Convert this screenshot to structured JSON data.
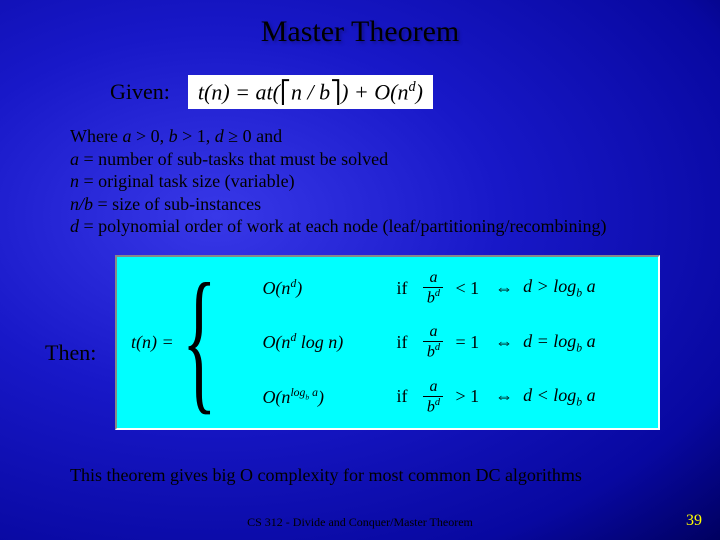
{
  "title": "Master Theorem",
  "given_label": "Given:",
  "eq1": "t(n) = at(⎡n / b⎤) + O(n^d)",
  "where_lines": [
    "Where <span class=\"it\">a</span> > 0, <span class=\"it\">b</span> > 1, <span class=\"it\">d</span> ≥ 0 and",
    "<span class=\"it\">a</span> = number of sub-tasks that must be solved",
    "<span class=\"it\">n</span> = original task size (variable)",
    "<span class=\"it\">n/b</span> = size of sub-instances",
    "<span class=\"it\">d</span> = polynomial order of work at each node (leaf/partitioning/recombining)"
  ],
  "then_label": "Then:",
  "tn": "t(n) =",
  "cases": [
    {
      "bigO": "O(n<sup>d</sup>)",
      "cmp": "< 1",
      "dcmp": "d > log<sub>b</sub> a"
    },
    {
      "bigO": "O(n<sup>d</sup> log n)",
      "cmp": "= 1",
      "dcmp": "d = log<sub>b</sub> a"
    },
    {
      "bigO": "O(n<sup>log<sub>b</sub> a</sup>)",
      "cmp": "> 1",
      "dcmp": "d < log<sub>b</sub> a"
    }
  ],
  "closing": "This theorem gives big O complexity for most common DC algorithms",
  "footer": "CS 312 - Divide and Conquer/Master Theorem",
  "pagenum": "39",
  "colors": {
    "title": "#000000",
    "cases_bg": "#00ffff",
    "pagenum": "#ffff00"
  }
}
